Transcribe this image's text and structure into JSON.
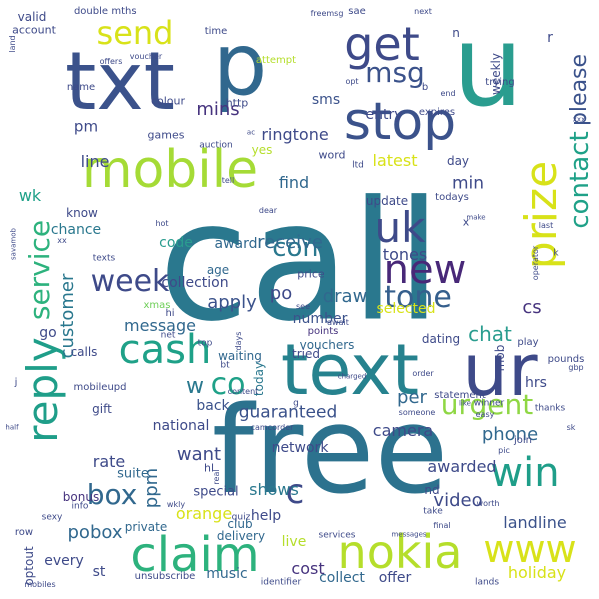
{
  "palette": {
    "c1": "#440154",
    "c2": "#482878",
    "c3": "#3e4a89",
    "c4": "#31688e",
    "c5": "#26828e",
    "c6": "#1f9e89",
    "c7": "#35b779",
    "c8": "#6ece58",
    "c9": "#b5de2b",
    "c10": "#fde725"
  },
  "words": [
    {
      "id": "call",
      "text": "call",
      "color": "#2a788e"
    },
    {
      "id": "free",
      "text": "free",
      "color": "#2c728e"
    },
    {
      "id": "txt",
      "text": "txt",
      "color": "#3b528b"
    },
    {
      "id": "u",
      "text": "u",
      "color": "#2a9d8f"
    },
    {
      "id": "mobile",
      "text": "mobile",
      "color": "#a5db36"
    },
    {
      "id": "text",
      "text": "text",
      "color": "#26828e"
    },
    {
      "id": "ur",
      "text": "ur",
      "color": "#3e4a89"
    },
    {
      "id": "p",
      "text": "p",
      "color": "#31688e"
    },
    {
      "id": "stop",
      "text": "stop",
      "color": "#3b528b"
    },
    {
      "id": "get",
      "text": "get",
      "color": "#3e4a89"
    },
    {
      "id": "send",
      "text": "send",
      "color": "#d8e219"
    },
    {
      "id": "msg",
      "text": "msg",
      "color": "#3b528b"
    },
    {
      "id": "claim",
      "text": "claim",
      "color": "#2db27d"
    },
    {
      "id": "nokia",
      "text": "nokia",
      "color": "#b5de2b"
    },
    {
      "id": "www",
      "text": "www",
      "color": "#d8e219"
    },
    {
      "id": "reply",
      "text": "reply",
      "color": "#1f9e89"
    },
    {
      "id": "cash",
      "text": "cash",
      "color": "#1fa188"
    },
    {
      "id": "uk",
      "text": "uk",
      "color": "#3e4a89"
    },
    {
      "id": "new",
      "text": "new",
      "color": "#482878"
    },
    {
      "id": "prize",
      "text": "prize",
      "color": "#d8e219"
    },
    {
      "id": "win",
      "text": "win",
      "color": "#1f9e89"
    },
    {
      "id": "tone",
      "text": "tone",
      "color": "#355f8d"
    },
    {
      "id": "week",
      "text": "week",
      "color": "#3e4a89"
    },
    {
      "id": "com",
      "text": "com",
      "color": "#2a788e"
    },
    {
      "id": "contact",
      "text": "contact",
      "color": "#1fa188"
    },
    {
      "id": "please",
      "text": "please",
      "color": "#3b528b"
    },
    {
      "id": "service",
      "text": "service",
      "color": "#2db27d"
    },
    {
      "id": "urgent",
      "text": "urgent",
      "color": "#8fd744"
    },
    {
      "id": "box",
      "text": "box",
      "color": "#31688e"
    },
    {
      "id": "c",
      "text": "c",
      "color": "#3e4a89"
    },
    {
      "id": "co",
      "text": "co",
      "color": "#1fa188"
    },
    {
      "id": "w",
      "text": "w",
      "color": "#2a788e"
    },
    {
      "id": "guaranteed",
      "text": "guaranteed",
      "color": "#3b528b"
    },
    {
      "id": "pobox",
      "text": "pobox",
      "color": "#31688e"
    },
    {
      "id": "customer",
      "text": "customer",
      "color": "#2a788e"
    },
    {
      "id": "chat",
      "text": "chat",
      "color": "#2a9d8f"
    },
    {
      "id": "cs",
      "text": "cs",
      "color": "#46337e"
    },
    {
      "id": "latest",
      "text": "latest",
      "color": "#d8e219"
    },
    {
      "id": "line",
      "text": "line",
      "color": "#3e4a89"
    },
    {
      "id": "ringtone",
      "text": "ringtone",
      "color": "#3e4a89"
    },
    {
      "id": "mins",
      "text": "mins",
      "color": "#46337e"
    },
    {
      "id": "sms",
      "text": "sms",
      "color": "#3b528b"
    },
    {
      "id": "pm",
      "text": "pm",
      "color": "#3e4a89"
    },
    {
      "id": "entry",
      "text": "entry",
      "color": "#3e4a89"
    },
    {
      "id": "find",
      "text": "find",
      "color": "#31688e"
    },
    {
      "id": "min",
      "text": "min",
      "color": "#3e4a89"
    },
    {
      "id": "wk",
      "text": "wk",
      "color": "#1fa188"
    },
    {
      "id": "chance",
      "text": "chance",
      "color": "#2a788e"
    },
    {
      "id": "code",
      "text": "code",
      "color": "#2a9d8f"
    },
    {
      "id": "award",
      "text": "award",
      "color": "#31688e"
    },
    {
      "id": "receive",
      "text": "receive",
      "color": "#31688e"
    },
    {
      "id": "apply",
      "text": "apply",
      "color": "#3b528b"
    },
    {
      "id": "draw",
      "text": "draw",
      "color": "#31688e"
    },
    {
      "id": "tones",
      "text": "tones",
      "color": "#3e4a89"
    },
    {
      "id": "message",
      "text": "message",
      "color": "#31688e"
    },
    {
      "id": "collection",
      "text": "collection",
      "color": "#3e4a89"
    },
    {
      "id": "number",
      "text": "number",
      "color": "#3b528b"
    },
    {
      "id": "po",
      "text": "po",
      "color": "#3e4a89"
    },
    {
      "id": "selected",
      "text": "selected",
      "color": "#d8e219"
    },
    {
      "id": "per",
      "text": "per",
      "color": "#31688e"
    },
    {
      "id": "phone",
      "text": "phone",
      "color": "#31688e"
    },
    {
      "id": "awarded",
      "text": "awarded",
      "color": "#3e4a89"
    },
    {
      "id": "camera",
      "text": "camera",
      "color": "#3e4a89"
    },
    {
      "id": "video",
      "text": "video",
      "color": "#3e4a89"
    },
    {
      "id": "landline",
      "text": "landline",
      "color": "#3b528b"
    },
    {
      "id": "holiday",
      "text": "holiday",
      "color": "#d8e219"
    },
    {
      "id": "live",
      "text": "live",
      "color": "#b5de2b"
    },
    {
      "id": "cost",
      "text": "cost",
      "color": "#46337e"
    },
    {
      "id": "collect",
      "text": "collect",
      "color": "#31688e"
    },
    {
      "id": "offer",
      "text": "offer",
      "color": "#3e4a89"
    },
    {
      "id": "rate",
      "text": "rate",
      "color": "#3e4a89"
    },
    {
      "id": "want",
      "text": "want",
      "color": "#3e4a89"
    },
    {
      "id": "shows",
      "text": "shows",
      "color": "#2a788e"
    },
    {
      "id": "network",
      "text": "network",
      "color": "#3e4a89"
    },
    {
      "id": "orange",
      "text": "orange",
      "color": "#d8e219"
    },
    {
      "id": "ppm",
      "text": "ppm",
      "color": "#31688e"
    },
    {
      "id": "every",
      "text": "every",
      "color": "#3e4a89"
    },
    {
      "id": "st",
      "text": "st",
      "color": "#3e4a89"
    },
    {
      "id": "music",
      "text": "music",
      "color": "#31688e"
    },
    {
      "id": "national",
      "text": "national",
      "color": "#3e4a89"
    },
    {
      "id": "back",
      "text": "back",
      "color": "#3b528b"
    },
    {
      "id": "help",
      "text": "help",
      "color": "#3e4a89"
    },
    {
      "id": "urgent2",
      "text": "mob",
      "color": "#3e4a89"
    },
    {
      "id": "hrs",
      "text": "hrs",
      "color": "#3e4a89"
    },
    {
      "id": "nd",
      "text": "nd",
      "color": "#3e4a89"
    },
    {
      "id": "delivery",
      "text": "delivery",
      "color": "#31688e"
    },
    {
      "id": "club",
      "text": "club",
      "color": "#31688e"
    },
    {
      "id": "special",
      "text": "special",
      "color": "#3e4a89"
    },
    {
      "id": "private",
      "text": "private",
      "color": "#31688e"
    },
    {
      "id": "bonus",
      "text": "bonus",
      "color": "#46337e"
    },
    {
      "id": "suite",
      "text": "suite",
      "color": "#31688e"
    },
    {
      "id": "gift",
      "text": "gift",
      "color": "#3e4a89"
    },
    {
      "id": "calls",
      "text": "calls",
      "color": "#3e4a89"
    },
    {
      "id": "go",
      "text": "go",
      "color": "#3e4a89"
    },
    {
      "id": "today",
      "text": "today",
      "color": "#2a788e"
    },
    {
      "id": "vouchers",
      "text": "vouchers",
      "color": "#31688e"
    },
    {
      "id": "dating",
      "text": "dating",
      "color": "#3e4a89"
    },
    {
      "id": "waiting",
      "text": "waiting",
      "color": "#31688e"
    },
    {
      "id": "tried",
      "text": "tried",
      "color": "#3e4a89"
    },
    {
      "id": "points",
      "text": "points",
      "color": "#46337e"
    },
    {
      "id": "xmas",
      "text": "xmas",
      "color": "#6ece58"
    },
    {
      "id": "hi",
      "text": "hi",
      "color": "#3e4a89"
    },
    {
      "id": "age",
      "text": "age",
      "color": "#31688e"
    },
    {
      "id": "price",
      "text": "price",
      "color": "#3e4a89"
    },
    {
      "id": "update",
      "text": "update",
      "color": "#3e4a89"
    },
    {
      "id": "todays",
      "text": "todays",
      "color": "#3e4a89"
    },
    {
      "id": "know",
      "text": "know",
      "color": "#3e4a89"
    },
    {
      "id": "games",
      "text": "games",
      "color": "#3e4a89"
    },
    {
      "id": "yes",
      "text": "yes",
      "color": "#b5de2b"
    },
    {
      "id": "day",
      "text": "day",
      "color": "#3e4a89"
    },
    {
      "id": "word",
      "text": "word",
      "color": "#3e4a89"
    },
    {
      "id": "http",
      "text": "http",
      "color": "#3e4a89"
    },
    {
      "id": "colour",
      "text": "colour",
      "color": "#3e4a89"
    },
    {
      "id": "weekly",
      "text": "weekly",
      "color": "#3e4a89"
    },
    {
      "id": "valid",
      "text": "valid",
      "color": "#3e4a89"
    },
    {
      "id": "mths",
      "text": "mths",
      "color": "#3e4a89"
    },
    {
      "id": "double",
      "text": "double",
      "color": "#3e4a89"
    },
    {
      "id": "account",
      "text": "account",
      "color": "#3e4a89"
    },
    {
      "id": "time",
      "text": "time",
      "color": "#3e4a89"
    },
    {
      "id": "attempt",
      "text": "attempt",
      "color": "#b5de2b"
    },
    {
      "id": "name",
      "text": "name",
      "color": "#3e4a89"
    },
    {
      "id": "expires",
      "text": "expires",
      "color": "#3e4a89"
    },
    {
      "id": "trying",
      "text": "trying",
      "color": "#3e4a89"
    },
    {
      "id": "sae",
      "text": "sae",
      "color": "#3e4a89"
    },
    {
      "id": "freemsg",
      "text": "freemsg",
      "color": "#3e4a89"
    },
    {
      "id": "next",
      "text": "next",
      "color": "#3e4a89"
    },
    {
      "id": "r",
      "text": "r",
      "color": "#3e4a89"
    },
    {
      "id": "n",
      "text": "n",
      "color": "#3e4a89"
    },
    {
      "id": "auction",
      "text": "auction",
      "color": "#3e4a89"
    },
    {
      "id": "tell",
      "text": "tell",
      "color": "#3e4a89"
    },
    {
      "id": "ltd",
      "text": "ltd",
      "color": "#3e4a89"
    },
    {
      "id": "x",
      "text": "x",
      "color": "#3e4a89"
    },
    {
      "id": "k",
      "text": "k",
      "color": "#3e4a89"
    },
    {
      "id": "pounds",
      "text": "pounds",
      "color": "#3e4a89"
    },
    {
      "id": "play",
      "text": "play",
      "color": "#3e4a89"
    },
    {
      "id": "winner",
      "text": "winner",
      "color": "#3e4a89"
    },
    {
      "id": "order",
      "text": "order",
      "color": "#3e4a89"
    },
    {
      "id": "thanks",
      "text": "thanks",
      "color": "#3e4a89"
    },
    {
      "id": "join",
      "text": "join",
      "color": "#3e4a89"
    },
    {
      "id": "statement",
      "text": "statement",
      "color": "#3e4a89"
    },
    {
      "id": "someone",
      "text": "someone",
      "color": "#3e4a89"
    },
    {
      "id": "camcorder",
      "text": "camcorder",
      "color": "#3e4a89"
    },
    {
      "id": "quiz",
      "text": "quiz",
      "color": "#3e4a89"
    },
    {
      "id": "services",
      "text": "services",
      "color": "#3e4a89"
    },
    {
      "id": "identifier",
      "text": "identifier",
      "color": "#3e4a89"
    },
    {
      "id": "lands",
      "text": "lands",
      "color": "#3e4a89"
    },
    {
      "id": "final",
      "text": "final",
      "color": "#3e4a89"
    },
    {
      "id": "take",
      "text": "take",
      "color": "#3e4a89"
    },
    {
      "id": "unsubscribe",
      "text": "unsubscribe",
      "color": "#3e4a89"
    },
    {
      "id": "optout",
      "text": "optout",
      "color": "#3e4a89"
    },
    {
      "id": "mobiles",
      "text": "mobiles",
      "color": "#3e4a89"
    },
    {
      "id": "info",
      "text": "info",
      "color": "#3e4a89"
    },
    {
      "id": "sexy",
      "text": "sexy",
      "color": "#3e4a89"
    },
    {
      "id": "row",
      "text": "row",
      "color": "#3e4a89"
    },
    {
      "id": "mobileupd",
      "text": "mobileupd",
      "color": "#3e4a89"
    },
    {
      "id": "land",
      "text": "land",
      "color": "#3e4a89"
    },
    {
      "id": "offers",
      "text": "offers",
      "color": "#3e4a89"
    },
    {
      "id": "voucher",
      "text": "voucher",
      "color": "#3e4a89"
    },
    {
      "id": "opt",
      "text": "opt",
      "color": "#3e4a89"
    },
    {
      "id": "end",
      "text": "end",
      "color": "#3e4a89"
    },
    {
      "id": "b",
      "text": "b",
      "color": "#3e4a89"
    },
    {
      "id": "last",
      "text": "last",
      "color": "#3e4a89"
    },
    {
      "id": "make",
      "text": "make",
      "color": "#3e4a89"
    },
    {
      "id": "gbp",
      "text": "gbp",
      "color": "#3e4a89"
    },
    {
      "id": "sk",
      "text": "sk",
      "color": "#3e4a89"
    },
    {
      "id": "worth",
      "text": "worth",
      "color": "#3e4a89"
    },
    {
      "id": "easy",
      "text": "easy",
      "color": "#3e4a89"
    },
    {
      "id": "like",
      "text": "like",
      "color": "#3e4a89"
    },
    {
      "id": "charged",
      "text": "charged",
      "color": "#3e4a89"
    },
    {
      "id": "await",
      "text": "await",
      "color": "#3e4a89"
    },
    {
      "id": "see",
      "text": "see",
      "color": "#3e4a89"
    },
    {
      "id": "hot",
      "text": "hot",
      "color": "#3e4a89"
    },
    {
      "id": "days",
      "text": "days",
      "color": "#3e4a89"
    },
    {
      "id": "content",
      "text": "content",
      "color": "#3e4a89"
    },
    {
      "id": "top",
      "text": "top",
      "color": "#3e4a89"
    },
    {
      "id": "bt",
      "text": "bt",
      "color": "#3e4a89"
    },
    {
      "id": "net",
      "text": "net",
      "color": "#3e4a89"
    },
    {
      "id": "hl",
      "text": "hl",
      "color": "#3e4a89"
    },
    {
      "id": "real",
      "text": "real",
      "color": "#3e4a89"
    },
    {
      "id": "g",
      "text": "g",
      "color": "#3e4a89"
    },
    {
      "id": "xx",
      "text": "xx",
      "color": "#3e4a89"
    },
    {
      "id": "texts",
      "text": "texts",
      "color": "#3e4a89"
    },
    {
      "id": "savamob",
      "text": "savamob",
      "color": "#3e4a89"
    },
    {
      "id": "operator",
      "text": "operator",
      "color": "#3e4a89"
    },
    {
      "id": "dear",
      "text": "dear",
      "color": "#3e4a89"
    },
    {
      "id": "ac",
      "text": "ac",
      "color": "#3e4a89"
    },
    {
      "id": "wkly",
      "text": "wkly",
      "color": "#3e4a89"
    },
    {
      "id": "messages",
      "text": "messages",
      "color": "#3e4a89"
    },
    {
      "id": "half",
      "text": "half",
      "color": "#3e4a89"
    },
    {
      "id": "j",
      "text": "j",
      "color": "#3e4a89"
    },
    {
      "id": "xxx",
      "text": "xxx",
      "color": "#3e4a89"
    },
    {
      "id": "pic",
      "text": "pic",
      "color": "#3e4a89"
    }
  ]
}
